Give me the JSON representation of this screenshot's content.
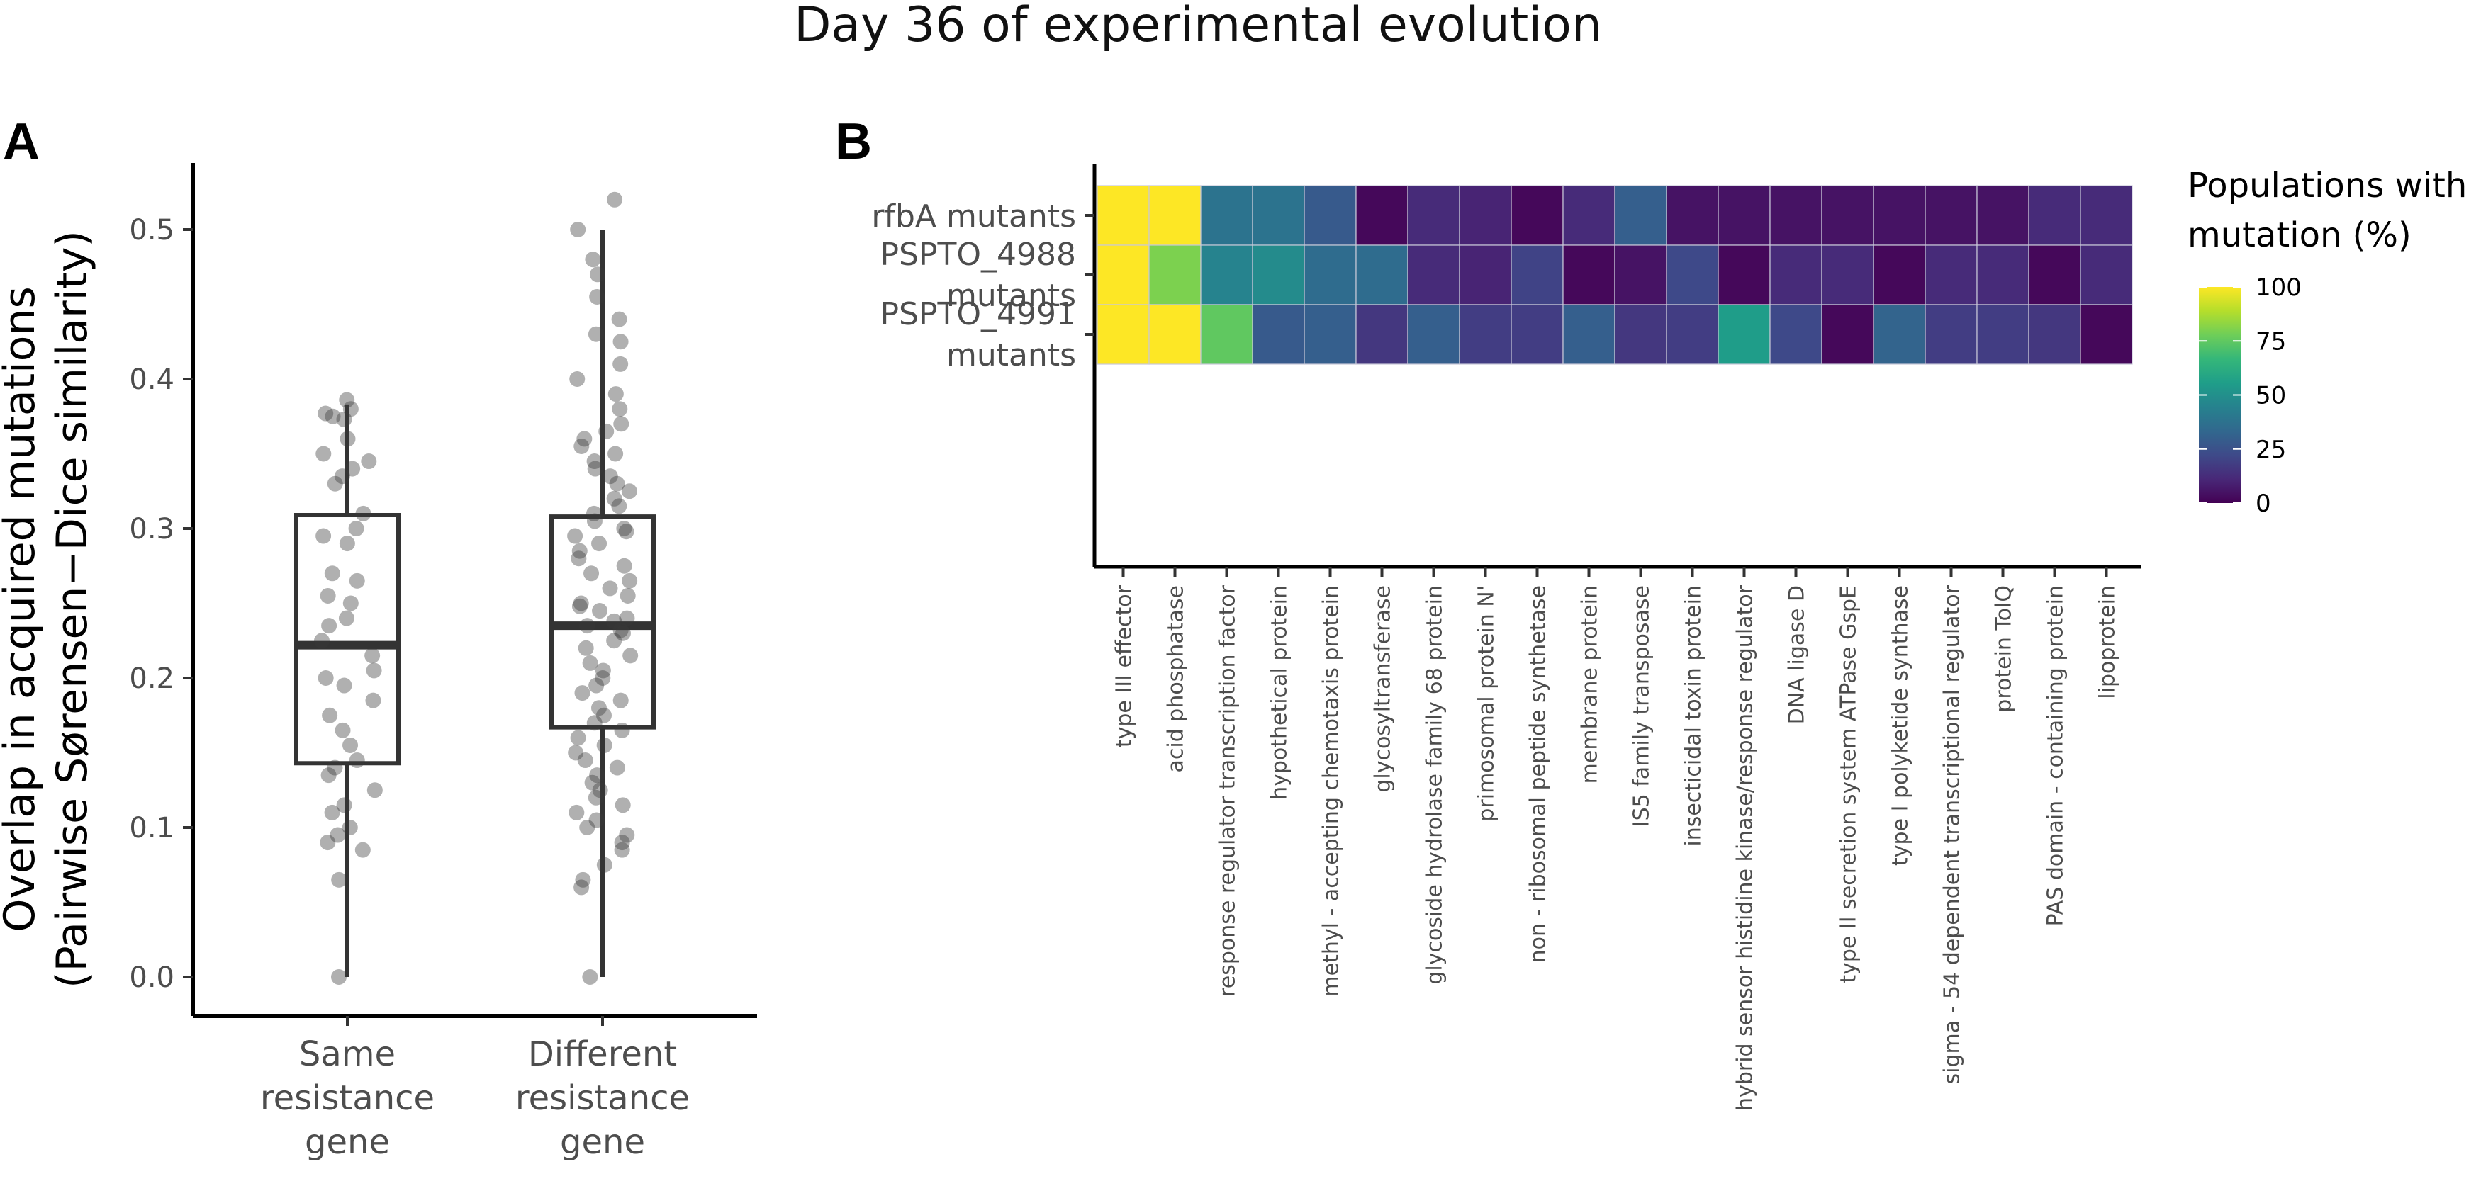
{
  "figure_title": "Day 36 of experimental evolution",
  "chart_data": [
    {
      "panel": "A",
      "type": "boxplot",
      "ylabel": "Overlap in acquired mutations",
      "ylabel2": "(Pairwise Sørensen−Dice similarity)",
      "ylim": [
        0,
        0.55
      ],
      "yticks": [
        "0.0",
        "0.1",
        "0.2",
        "0.3",
        "0.4",
        "0.5"
      ],
      "categories": [
        {
          "label_lines": [
            "Same",
            "resistance",
            "gene"
          ],
          "box": {
            "min": 0.0,
            "q1": 0.143,
            "median": 0.222,
            "q3": 0.309,
            "max": 0.383
          },
          "points": [
            0.386,
            0.38,
            0.377,
            0.375,
            0.373,
            0.36,
            0.35,
            0.345,
            0.34,
            0.335,
            0.33,
            0.31,
            0.3,
            0.295,
            0.29,
            0.27,
            0.265,
            0.255,
            0.25,
            0.24,
            0.235,
            0.225,
            0.215,
            0.205,
            0.2,
            0.195,
            0.185,
            0.175,
            0.165,
            0.155,
            0.145,
            0.14,
            0.135,
            0.125,
            0.115,
            0.11,
            0.1,
            0.095,
            0.09,
            0.085,
            0.065,
            0.0
          ]
        },
        {
          "label_lines": [
            "Different",
            "resistance",
            "gene"
          ],
          "box": {
            "min": 0.0,
            "q1": 0.167,
            "median": 0.235,
            "q3": 0.308,
            "max": 0.5
          },
          "points": [
            0.52,
            0.5,
            0.48,
            0.47,
            0.455,
            0.44,
            0.43,
            0.425,
            0.41,
            0.4,
            0.39,
            0.38,
            0.37,
            0.365,
            0.36,
            0.355,
            0.35,
            0.345,
            0.34,
            0.335,
            0.33,
            0.325,
            0.32,
            0.315,
            0.31,
            0.305,
            0.3,
            0.298,
            0.295,
            0.29,
            0.285,
            0.28,
            0.275,
            0.27,
            0.265,
            0.26,
            0.255,
            0.25,
            0.248,
            0.245,
            0.24,
            0.238,
            0.235,
            0.232,
            0.23,
            0.225,
            0.22,
            0.215,
            0.21,
            0.205,
            0.2,
            0.195,
            0.19,
            0.185,
            0.18,
            0.175,
            0.17,
            0.165,
            0.16,
            0.155,
            0.15,
            0.145,
            0.14,
            0.135,
            0.13,
            0.125,
            0.12,
            0.115,
            0.11,
            0.105,
            0.1,
            0.095,
            0.09,
            0.085,
            0.075,
            0.065,
            0.06,
            0.0
          ]
        }
      ]
    },
    {
      "panel": "B",
      "type": "heatmap",
      "rows": [
        [
          "rfbA mutants"
        ],
        [
          "PSPTO_4988",
          "mutants"
        ],
        [
          "PSPTO_4991",
          "mutants"
        ]
      ],
      "columns": [
        "type III effector",
        "acid phosphatase",
        "response regulator transcription factor",
        "hypothetical protein",
        "methyl - accepting chemotaxis protein",
        "glycosyltransferase",
        "glycoside hydrolase family 68 protein",
        "primosomal protein N'",
        "non - ribosomal peptide synthetase",
        "membrane protein",
        "IS5 family transposase",
        "insecticidal toxin protein",
        "hybrid sensor histidine kinase/response regulator",
        "DNA ligase D",
        "type II secretion system ATPase GspE",
        "type I polyketide synthase",
        "sigma - 54 dependent transcriptional regulator",
        "protein TolQ",
        "PAS domain - containing protein",
        "lipoprotein"
      ],
      "values": [
        [
          100,
          100,
          38,
          38,
          28,
          2,
          12,
          10,
          2,
          12,
          30,
          5,
          5,
          5,
          5,
          5,
          5,
          5,
          12,
          12
        ],
        [
          100,
          80,
          45,
          48,
          35,
          35,
          12,
          10,
          20,
          2,
          5,
          22,
          2,
          12,
          12,
          2,
          12,
          12,
          2,
          12
        ],
        [
          100,
          100,
          75,
          28,
          30,
          16,
          30,
          18,
          18,
          30,
          16,
          18,
          55,
          22,
          2,
          32,
          18,
          18,
          16,
          2
        ]
      ],
      "legend_title": [
        "Populations with",
        "mutation (%)"
      ],
      "legend_ticks": [
        "100",
        "75",
        "50",
        "25",
        "0"
      ],
      "scale": "viridis",
      "range": [
        0,
        100
      ]
    }
  ]
}
